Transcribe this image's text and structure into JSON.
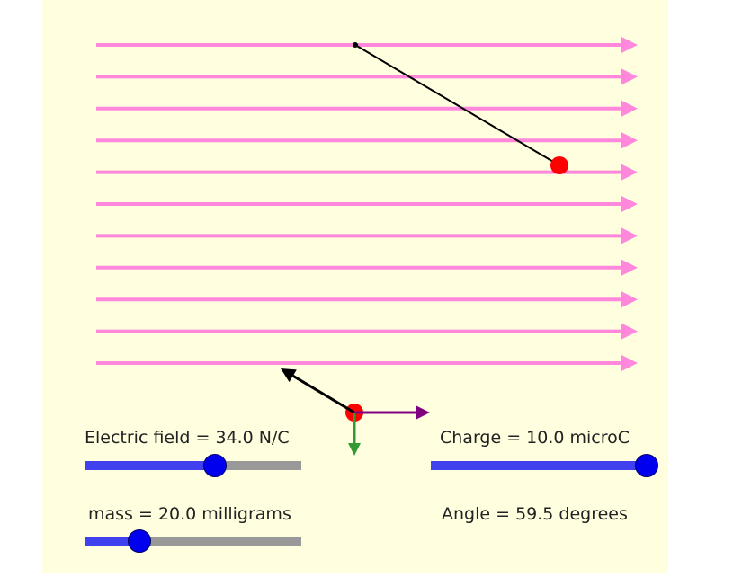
{
  "sliders": {
    "field": {
      "label": "Electric field = 34.0 N/C",
      "level": 0.6
    },
    "charge": {
      "label": "Charge = 10.0 microC",
      "level": 1.0
    },
    "mass": {
      "label": "mass = 20.0 milligrams",
      "level": 0.25
    }
  },
  "readouts": {
    "angle": "Angle = 59.5 degrees"
  },
  "colors": {
    "panel_bg": "#ffffe0",
    "field_lines": "#ff88dd",
    "charge_ball": "#ff0000",
    "string": "#000000",
    "tension_vector": "#000000",
    "electric_force_vector": "#800080",
    "gravity_vector": "#339933",
    "slider_fill": "#4040ee",
    "slider_track": "#999999",
    "slider_knob": "#0000ee"
  }
}
